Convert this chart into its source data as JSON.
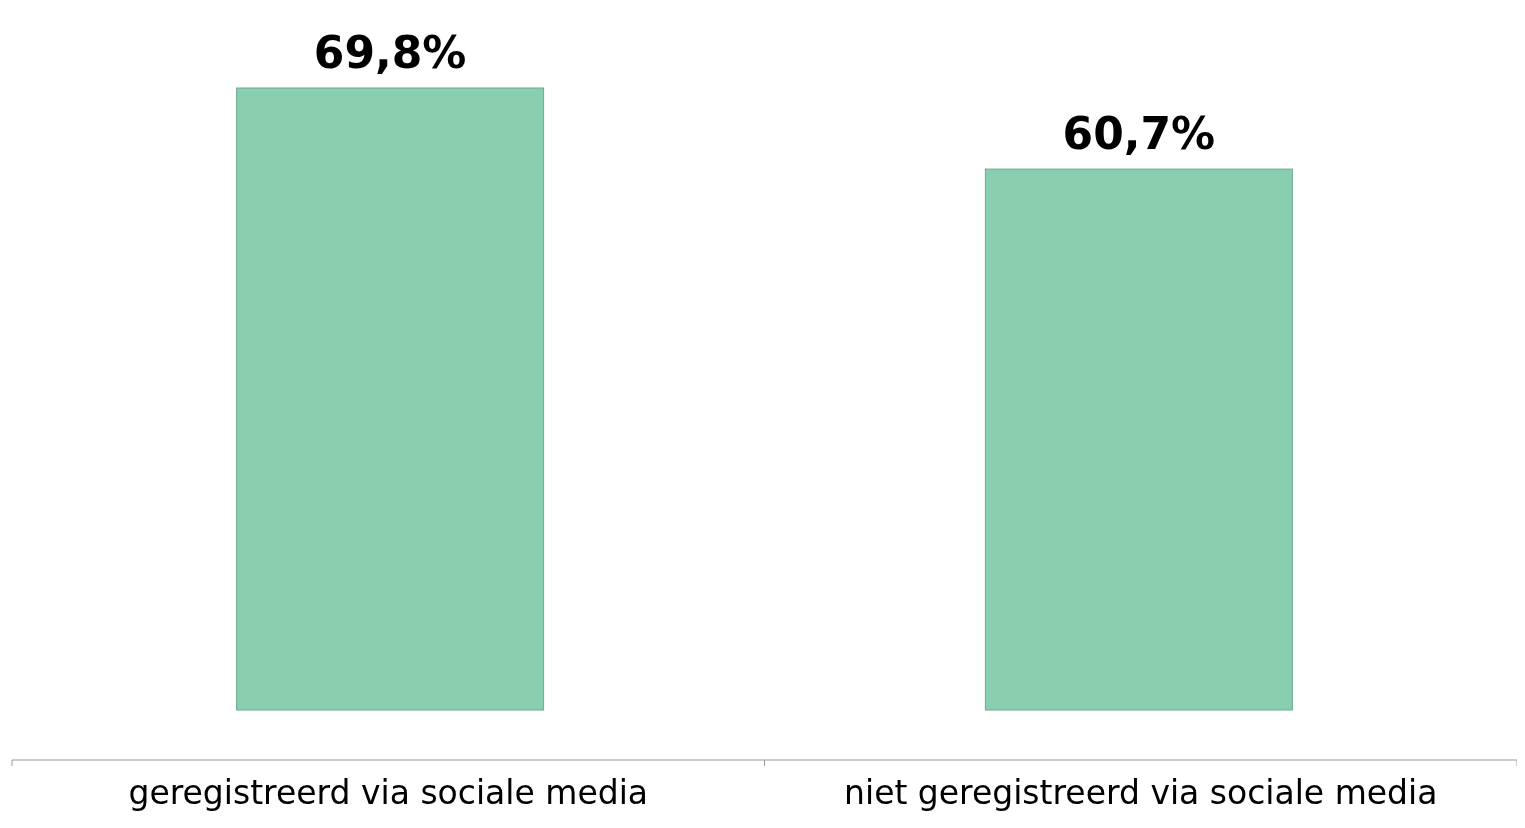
{
  "chart_data": {
    "type": "bar",
    "categories": [
      "geregistreerd via sociale media",
      "niet geregistreerd via sociale media"
    ],
    "values": [
      69.8,
      60.7
    ],
    "value_labels": [
      "69,8%",
      "60,7%"
    ],
    "color": "#88cfb0"
  }
}
